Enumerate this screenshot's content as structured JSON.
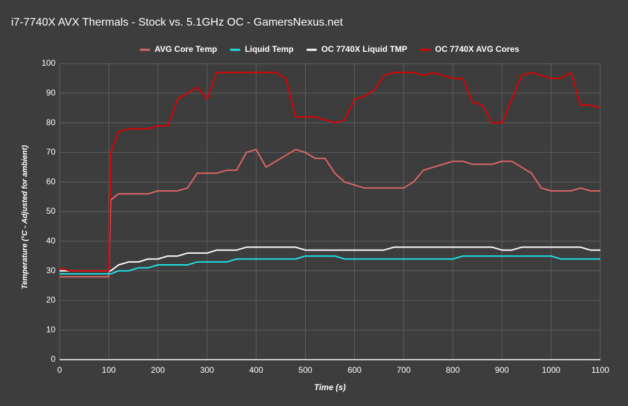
{
  "chart_data": {
    "type": "line",
    "title": "i7-7740X AVX Thermals - Stock vs. 5.1GHz OC - GamersNexus.net",
    "x_label": "Time (s)",
    "y_label": "Temperature (°C - Adjusted for ambient)",
    "x": [
      0,
      20,
      40,
      60,
      80,
      100,
      104,
      120,
      140,
      160,
      180,
      200,
      220,
      240,
      260,
      280,
      300,
      320,
      340,
      360,
      380,
      400,
      420,
      440,
      460,
      480,
      500,
      520,
      540,
      560,
      580,
      600,
      620,
      640,
      660,
      680,
      700,
      720,
      740,
      760,
      780,
      800,
      820,
      840,
      860,
      880,
      900,
      920,
      940,
      960,
      980,
      1000,
      1020,
      1040,
      1060,
      1080,
      1100
    ],
    "series": [
      {
        "name": "AVG Core Temp",
        "color": "#e06666",
        "values": [
          28,
          28,
          28,
          28,
          28,
          28,
          54,
          56,
          56,
          56,
          56,
          57,
          57,
          57,
          58,
          63,
          63,
          63,
          64,
          64,
          70,
          71,
          65,
          67,
          69,
          71,
          70,
          68,
          68,
          63,
          60,
          59,
          58,
          58,
          58,
          58,
          58,
          60,
          64,
          65,
          66,
          67,
          67,
          66,
          66,
          66,
          67,
          67,
          65,
          63,
          58,
          57,
          57,
          57,
          58,
          57,
          57
        ]
      },
      {
        "name": "Liquid Temp",
        "color": "#1ee3e8",
        "values": [
          29,
          29,
          29,
          29,
          29,
          29,
          29,
          30,
          30,
          31,
          31,
          32,
          32,
          32,
          32,
          33,
          33,
          33,
          33,
          34,
          34,
          34,
          34,
          34,
          34,
          34,
          35,
          35,
          35,
          35,
          34,
          34,
          34,
          34,
          34,
          34,
          34,
          34,
          34,
          34,
          34,
          34,
          35,
          35,
          35,
          35,
          35,
          35,
          35,
          35,
          35,
          35,
          34,
          34,
          34,
          34,
          34
        ]
      },
      {
        "name": "OC 7740X Liquid TMP",
        "color": "#ffffff",
        "values": [
          30,
          30,
          30,
          30,
          30,
          30,
          30,
          32,
          33,
          33,
          34,
          34,
          35,
          35,
          36,
          36,
          36,
          37,
          37,
          37,
          38,
          38,
          38,
          38,
          38,
          38,
          37,
          37,
          37,
          37,
          37,
          37,
          37,
          37,
          37,
          38,
          38,
          38,
          38,
          38,
          38,
          38,
          38,
          38,
          38,
          38,
          37,
          37,
          38,
          38,
          38,
          38,
          38,
          38,
          38,
          37,
          37
        ]
      },
      {
        "name": "OC 7740X AVG Cores",
        "color": "#e00000",
        "values": [
          31,
          30,
          30,
          30,
          30,
          30,
          70,
          77,
          78,
          78,
          78,
          79,
          79,
          88,
          90,
          92,
          88,
          97,
          97,
          97,
          97,
          97,
          97,
          97,
          95,
          82,
          82,
          82,
          81,
          80,
          81,
          88,
          89,
          91,
          96,
          97,
          97,
          97,
          96,
          97,
          96,
          95,
          95,
          87,
          86,
          80,
          80,
          88,
          96,
          97,
          96,
          95,
          95,
          97,
          86,
          86,
          85
        ]
      }
    ],
    "xlim": [
      0,
      1100
    ],
    "xticks": [
      0,
      100,
      200,
      300,
      400,
      500,
      600,
      700,
      800,
      900,
      1000,
      1100
    ],
    "ylim": [
      0,
      100
    ],
    "yticks": [
      0,
      10,
      20,
      30,
      40,
      50,
      60,
      70,
      80,
      90,
      100
    ],
    "grid": true,
    "legend": "top"
  }
}
